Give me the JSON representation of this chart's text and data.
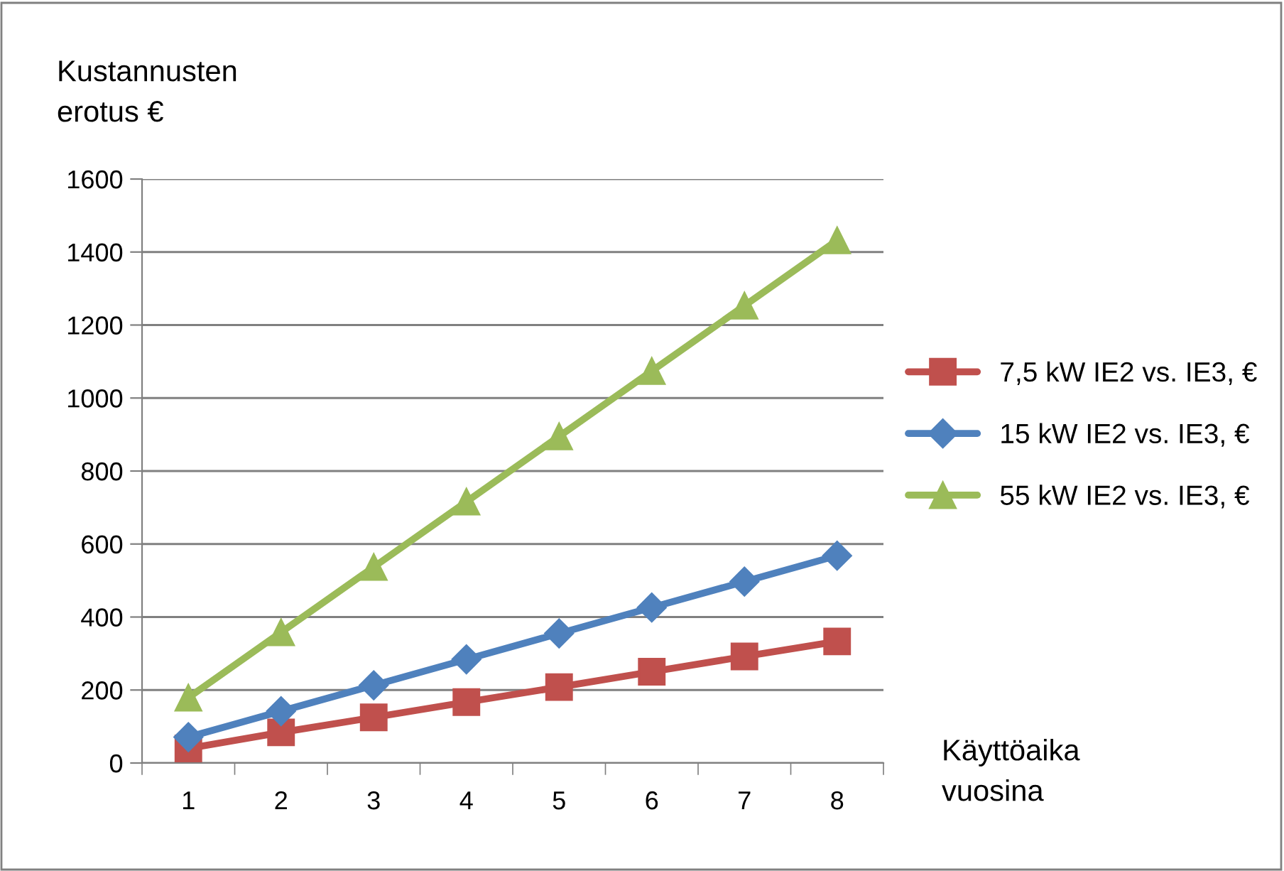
{
  "chart_data": {
    "type": "line",
    "xlabel": "Käyttöaika\nvuosina",
    "ylabel": "Kustannusten\nerotus €",
    "categories": [
      "1",
      "2",
      "3",
      "4",
      "5",
      "6",
      "7",
      "8"
    ],
    "series": [
      {
        "name": "7,5 kW IE2 vs. IE3, €",
        "color": "#c0504d",
        "marker": "square",
        "values": [
          40,
          84,
          125,
          167,
          208,
          250,
          292,
          333
        ]
      },
      {
        "name": "15 kW IE2 vs. IE3, €",
        "color": "#4f81bd",
        "marker": "diamond",
        "values": [
          71,
          142,
          213,
          284,
          355,
          426,
          497,
          568
        ]
      },
      {
        "name": "55 kW IE2 vs. IE3, €",
        "color": "#9bbb59",
        "marker": "triangle",
        "values": [
          179,
          358,
          537,
          716,
          895,
          1074,
          1253,
          1432
        ]
      }
    ],
    "ylim": [
      0,
      1600
    ],
    "yticks": [
      0,
      200,
      400,
      600,
      800,
      1000,
      1200,
      1400,
      1600
    ],
    "grid": "y",
    "legend": "right",
    "line_style": "solid"
  }
}
